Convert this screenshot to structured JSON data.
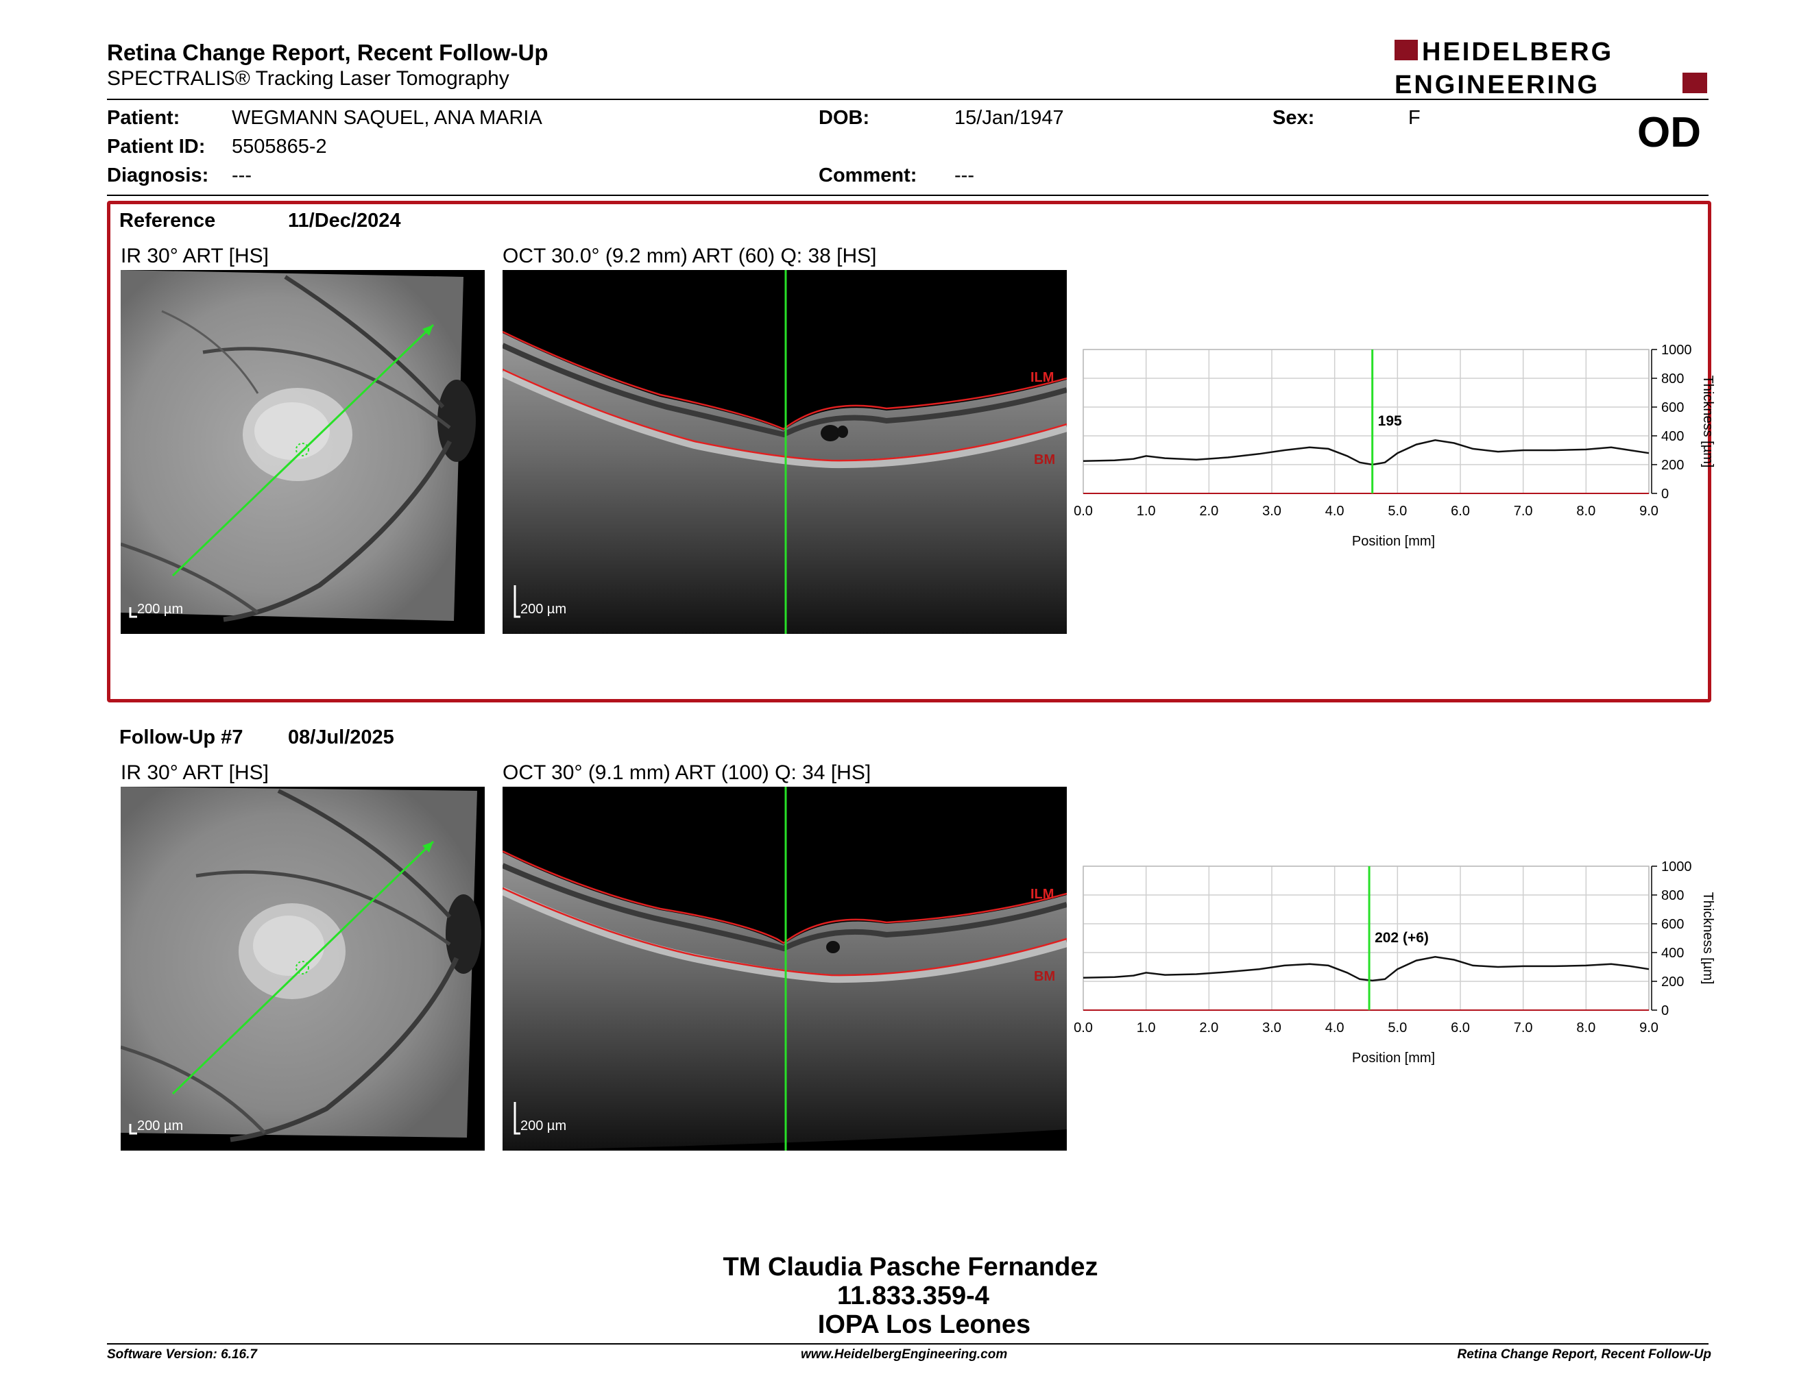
{
  "header": {
    "title": "Retina Change Report, Recent Follow-Up",
    "subtitle": "SPECTRALIS® Tracking Laser Tomography",
    "logo_line1": "HEIDELBERG",
    "logo_line2": "ENGINEERING"
  },
  "patient": {
    "patient_label": "Patient:",
    "patient_value": "WEGMANN SAQUEL, ANA MARIA",
    "id_label": "Patient ID:",
    "id_value": "5505865-2",
    "diagnosis_label": "Diagnosis:",
    "diagnosis_value": "---",
    "dob_label": "DOB:",
    "dob_value": "15/Jan/1947",
    "comment_label": "Comment:",
    "comment_value": "---",
    "sex_label": "Sex:",
    "sex_value": "F",
    "eye": "OD"
  },
  "reference": {
    "label": "Reference",
    "date": "11/Dec/2024",
    "ir_label": "IR 30° ART [HS]",
    "oct_label": "OCT 30.0° (9.2 mm) ART (60) Q: 38 [HS]",
    "scale": "200 µm",
    "ilm": "ILM",
    "bm": "BM",
    "chart_value": "195"
  },
  "followup": {
    "label": "Follow-Up #7",
    "date": "08/Jul/2025",
    "ir_label": "IR 30° ART [HS]",
    "oct_label": "OCT 30° (9.1 mm) ART (100) Q: 34 [HS]",
    "scale": "200 µm",
    "ilm": "ILM",
    "bm": "BM",
    "chart_value": "202 (+6)"
  },
  "chart_data": [
    {
      "type": "line",
      "xlabel": "Position [mm]",
      "ylabel": "Thickness [µm]",
      "xlim": [
        0,
        9
      ],
      "ylim": [
        0,
        1000
      ],
      "x_ticks": [
        "0.0",
        "1.0",
        "2.0",
        "3.0",
        "4.0",
        "5.0",
        "6.0",
        "7.0",
        "8.0",
        "9.0"
      ],
      "y_ticks": [
        "0",
        "200",
        "400",
        "600",
        "800",
        "1000"
      ],
      "marker_x": 4.6,
      "marker_label": "195",
      "x": [
        0,
        0.5,
        0.8,
        1.0,
        1.3,
        1.8,
        2.3,
        2.8,
        3.2,
        3.6,
        3.9,
        4.2,
        4.4,
        4.6,
        4.8,
        5.0,
        5.3,
        5.6,
        5.9,
        6.2,
        6.6,
        7.0,
        7.5,
        8.0,
        8.4,
        8.7,
        9.0
      ],
      "y": [
        225,
        230,
        240,
        260,
        245,
        235,
        250,
        275,
        300,
        320,
        310,
        260,
        215,
        200,
        215,
        280,
        340,
        370,
        350,
        310,
        290,
        300,
        300,
        305,
        320,
        300,
        280
      ]
    },
    {
      "type": "line",
      "xlabel": "Position [mm]",
      "ylabel": "Thickness [µm]",
      "xlim": [
        0,
        9
      ],
      "ylim": [
        0,
        1000
      ],
      "x_ticks": [
        "0.0",
        "1.0",
        "2.0",
        "3.0",
        "4.0",
        "5.0",
        "6.0",
        "7.0",
        "8.0",
        "9.0"
      ],
      "y_ticks": [
        "0",
        "200",
        "400",
        "600",
        "800",
        "1000"
      ],
      "marker_x": 4.55,
      "marker_label": "202 (+6)",
      "x": [
        0,
        0.5,
        0.8,
        1.0,
        1.3,
        1.8,
        2.3,
        2.8,
        3.2,
        3.6,
        3.9,
        4.2,
        4.4,
        4.6,
        4.8,
        5.0,
        5.3,
        5.6,
        5.9,
        6.2,
        6.6,
        7.0,
        7.5,
        8.0,
        8.4,
        8.7,
        9.0
      ],
      "y": [
        225,
        230,
        240,
        260,
        245,
        250,
        265,
        285,
        310,
        320,
        310,
        260,
        215,
        205,
        215,
        285,
        345,
        370,
        350,
        310,
        300,
        305,
        305,
        310,
        320,
        305,
        285
      ]
    }
  ],
  "signature": {
    "line1": "TM Claudia Pasche Fernandez",
    "line2": "11.833.359-4",
    "line3": "IOPA Los Leones"
  },
  "footer": {
    "left": "Software Version: 6.16.7",
    "center": "www.HeidelbergEngineering.com",
    "right": "Retina Change Report, Recent Follow-Up"
  },
  "colors": {
    "brand_red": "#b3121c",
    "scan_green": "#28e028",
    "layer_red": "#e02020"
  }
}
